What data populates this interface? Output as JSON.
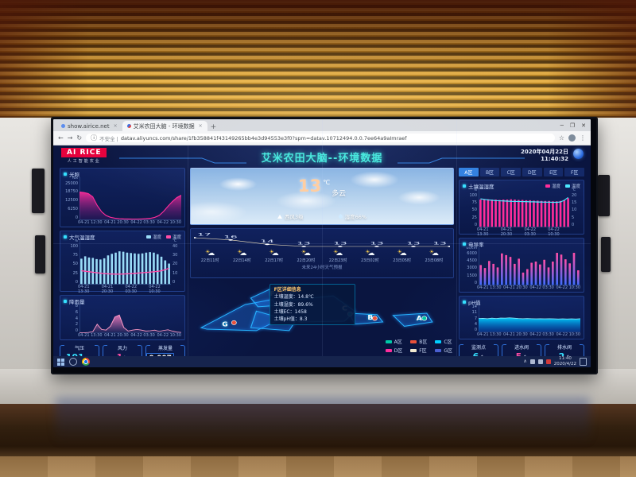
{
  "colors": {
    "accent_cyan": "#35e0d8",
    "accent_pink": "#ff2d9b",
    "panel_border": "#2c5bb8",
    "taskbar": "#16244d"
  },
  "browser": {
    "tab1": "show.airice.net",
    "tab2": "艾米农田大脑 - 环境数据",
    "new_tab": "+",
    "close": "×",
    "min": "─",
    "max": "❐",
    "win_close": "✕",
    "back": "←",
    "forward": "→",
    "reload": "↻",
    "info": "ⓘ",
    "star": "☆",
    "menu": "⋮",
    "security": "不安全 |",
    "url": "datav.aliyuncs.com/share/1fb358841f43149265bb4e3d94553e3f0?spm=datav.10712494.0.0.7ee64a9aImraef"
  },
  "header": {
    "logo_title": "AI RICE",
    "logo_sub": "人工智能农业",
    "title": "艾米农田大脑--环境数据",
    "date": "2020年04月22日",
    "time": "11:40:32"
  },
  "weather": {
    "temp": "13",
    "unit": "℃",
    "condition": "多云",
    "wind": "西风3级",
    "humidity": "湿度66%",
    "forecast_caption": "未来24小时天气预报"
  },
  "left_stats": [
    {
      "label": "气压",
      "value": "101",
      "unit": "kPa"
    },
    {
      "label": "风力",
      "value": "1",
      "unit": "级"
    },
    {
      "label": "蒸发量",
      "value": "0.007",
      "unit": "mm"
    }
  ],
  "right_stats": [
    {
      "label": "监测点",
      "value": "6",
      "unit": "个"
    },
    {
      "label": "进水阀",
      "value": "5",
      "unit": "个"
    },
    {
      "label": "排水阀",
      "value": "2",
      "unit": "个"
    }
  ],
  "zone_tabs": {
    "items": [
      "A区",
      "B区",
      "C区",
      "D区",
      "E区",
      "F区"
    ],
    "active_index": 0
  },
  "map": {
    "zones": [
      "G",
      "F",
      "C",
      "B",
      "A"
    ],
    "legend": [
      {
        "label": "A区",
        "color": "#00c9a7"
      },
      {
        "label": "B区",
        "color": "#e8503a"
      },
      {
        "label": "C区",
        "color": "#00cfff"
      },
      {
        "label": "D区",
        "color": "#ff2d9b"
      },
      {
        "label": "F区",
        "color": "#f2ead0"
      },
      {
        "label": "G区",
        "color": "#4a5fd0"
      }
    ],
    "tooltip": {
      "title": "F区详细信息",
      "rows": [
        "土壤温度：14.8℃",
        "土壤湿度：89.6%",
        "土壤EC：1458",
        "土壤pH值：8.3"
      ]
    }
  },
  "taskbar": {
    "time": "11:40",
    "date": "2020/4/22"
  },
  "chart_data": [
    {
      "type": "area",
      "title": "光照",
      "unit": "lux",
      "ylim": [
        0,
        25000
      ],
      "yticks": [
        "25000",
        "18750",
        "12500",
        "6250",
        "0"
      ],
      "x_labels": [
        "04-21 12:30",
        "04-21 20:30",
        "04-22 03:30",
        "04-22 10:30"
      ],
      "values": [
        17500,
        17200,
        16500,
        14500,
        9000,
        5000,
        2600,
        1500,
        900,
        600,
        450,
        380,
        350,
        350,
        420,
        550,
        800,
        1400,
        2600,
        5200,
        8500,
        11500,
        14000,
        15500
      ],
      "color": "#ff2d9b",
      "color_top": "rgba(255,45,155,0.9)",
      "color_bottom": "rgba(100,20,120,0.2)"
    },
    {
      "type": "bars_line",
      "title": "大气温湿度",
      "legend": [
        {
          "label": "湿度",
          "color": "#9adcf8"
        },
        {
          "label": "温度",
          "color": "#ff4da6"
        }
      ],
      "y_left": {
        "unit": "%",
        "max": 100,
        "ticks": [
          "100",
          "75",
          "50",
          "25",
          "0"
        ]
      },
      "y_right": {
        "unit": "℃",
        "max": 40,
        "ticks": [
          "40",
          "30",
          "20",
          "10",
          "0"
        ]
      },
      "x_labels": [
        "04-21 13:30",
        "04-21 20:30",
        "04-22 03:30",
        "04-22 10:30"
      ],
      "bars": [
        62,
        68,
        65,
        64,
        61,
        60,
        63,
        70,
        74,
        77,
        80,
        79,
        77,
        76,
        75,
        74,
        75,
        77,
        78,
        77,
        73,
        67,
        58,
        50
      ],
      "line": [
        13,
        12.5,
        12,
        11.5,
        11,
        10.6,
        10.2,
        10,
        9.8,
        9.7,
        9.7,
        9.8,
        10,
        10.2,
        10.4,
        10.7,
        11,
        11.3,
        11.6,
        12,
        12.4,
        13,
        14,
        15.5
      ],
      "bar_color": "#9adcf8",
      "line_color": "#ff4da6"
    },
    {
      "type": "area",
      "title": "降雨量",
      "unit": "mm",
      "ylim": [
        0,
        8
      ],
      "yticks": [
        "8",
        "6",
        "4",
        "2",
        "0"
      ],
      "x_labels": [
        "04-21 13:30",
        "04-21 20:30",
        "04-22 03:30",
        "04-22 10:30"
      ],
      "values": [
        0,
        0,
        0.1,
        0.3,
        2.6,
        1.0,
        0.8,
        2.0,
        4.8,
        5.4,
        1.6,
        0.5,
        0.8,
        1.0,
        0.8,
        0.5,
        0.6,
        0.8,
        0.4,
        0.7,
        0.9,
        0.5,
        0.2,
        0.1
      ],
      "color": "#ff9cc8",
      "color_top": "rgba(255,130,195,0.85)",
      "color_bottom": "rgba(255,130,195,0.05)"
    },
    {
      "type": "forecast_line",
      "title": "未来24小时天气预报",
      "x_labels": [
        "22日11时",
        "22日14时",
        "22日17时",
        "22日20时",
        "22日23时",
        "23日02时",
        "23日05时",
        "23日08时"
      ],
      "values": [
        17,
        16,
        14,
        13,
        13,
        13,
        13,
        13
      ],
      "icon": "partly-cloudy",
      "line_color": "#e6d9b8"
    },
    {
      "type": "bars_line",
      "title": "土壤温湿度",
      "legend": [
        {
          "label": "湿度",
          "color": "#ff2d9b"
        },
        {
          "label": "温度",
          "color": "#4de8ff"
        }
      ],
      "y_left": {
        "unit": "%",
        "max": 100,
        "ticks": [
          "100",
          "75",
          "50",
          "25",
          "0"
        ]
      },
      "y_right": {
        "unit": "℃",
        "max": 20,
        "ticks": [
          "20",
          "15",
          "10",
          "5",
          "0"
        ]
      },
      "x_labels": [
        "04-21 13:30",
        "04-21 20:30",
        "04-22 03:30",
        "04-22 10:30"
      ],
      "bars": [
        78,
        78,
        79,
        78,
        78,
        77,
        78,
        78,
        79,
        78,
        77,
        77,
        76,
        76,
        75,
        75,
        74,
        74,
        74,
        73,
        73,
        74,
        77,
        82
      ],
      "line": [
        16,
        15.7,
        15.4,
        15.2,
        15,
        14.9,
        14.8,
        14.7,
        14.6,
        14.5,
        14.5,
        14.4,
        14.4,
        14.3,
        14.3,
        14.2,
        14.2,
        14.1,
        14.1,
        14,
        14,
        14.2,
        15.2,
        16.8
      ],
      "bar_color": "#ff2d9b",
      "line_color": "#4de8ff"
    },
    {
      "type": "bars_gradient",
      "title": "电导率",
      "unit": "us/cm",
      "ylim": [
        0,
        6000
      ],
      "yticks": [
        "6000",
        "4500",
        "3000",
        "1500",
        "0"
      ],
      "x_labels": [
        "04-21 13:30",
        "04-21 20:30",
        "04-22 03:30",
        "04-22 10:30"
      ],
      "values": [
        3400,
        2900,
        4100,
        3600,
        3000,
        5400,
        5100,
        4800,
        3600,
        4500,
        2100,
        2700,
        3800,
        4000,
        3500,
        4300,
        3000,
        4000,
        5500,
        5200,
        4400,
        3700,
        5500,
        2500
      ],
      "color_top": "#ff4da6",
      "color_bottom": "#3f6dff"
    },
    {
      "type": "area",
      "title": "pH值",
      "unit": "",
      "ylim": [
        0,
        14
      ],
      "yticks": [
        "14",
        "11",
        "7",
        "4",
        "0"
      ],
      "x_labels": [
        "04-21 13:30",
        "04-21 20:30",
        "04-22 03:30",
        "04-22 10:30"
      ],
      "values": [
        7.6,
        7.7,
        7.5,
        7.8,
        7.6,
        7.9,
        7.8,
        8.0,
        7.8,
        7.6,
        7.5,
        7.6,
        7.5,
        7.4,
        7.5,
        7.4,
        7.5,
        7.4,
        7.3,
        7.4,
        7.3,
        7.4,
        7.3,
        7.5
      ],
      "color": "#8ff0ff",
      "color_top": "rgba(0,210,255,0.95)",
      "color_bottom": "rgba(0,90,220,0.35)"
    }
  ]
}
